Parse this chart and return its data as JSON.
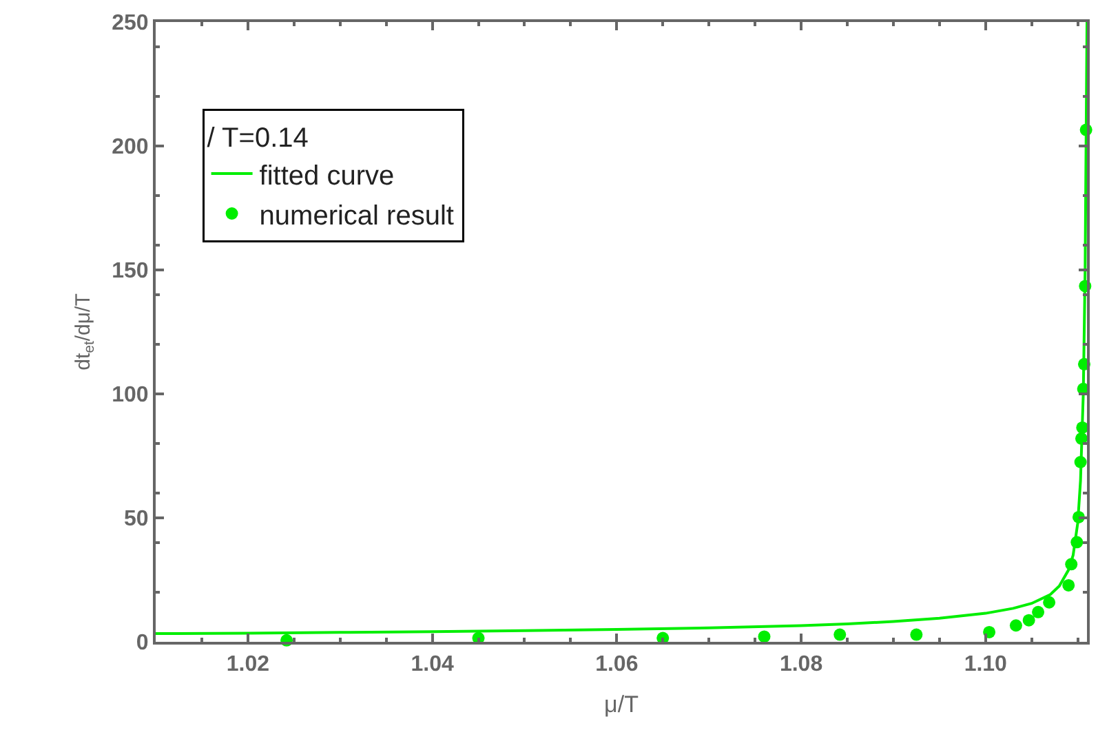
{
  "chart_data": {
    "type": "scatter",
    "xlabel": "μ/T",
    "ylabel": "dt$_{et}$/dμ/T",
    "legend_title": "/ T=0.14",
    "series": [
      {
        "name": "fitted curve",
        "type": "line",
        "color": "#00ee00",
        "marker": "none",
        "line_style": "solid",
        "x": [
          1.01,
          1.02,
          1.03,
          1.04,
          1.05,
          1.06,
          1.07,
          1.08,
          1.085,
          1.09,
          1.095,
          1.1,
          1.103,
          1.105,
          1.107,
          1.108,
          1.109,
          1.1095,
          1.11,
          1.1103,
          1.1106,
          1.1108,
          1.1109,
          1.111
        ],
        "values": [
          3.3,
          3.5,
          3.8,
          4.1,
          4.5,
          5.0,
          5.6,
          6.5,
          7.2,
          8.2,
          9.5,
          11.5,
          13.5,
          15.5,
          19,
          22.5,
          29,
          35,
          48,
          65,
          100,
          150,
          200,
          250
        ]
      },
      {
        "name": "numerical result",
        "color": "#00ee00",
        "marker": "circle",
        "x": [
          1.0242,
          1.045,
          1.065,
          1.076,
          1.0842,
          1.0925,
          1.1004,
          1.1033,
          1.1047,
          1.1057,
          1.1069,
          1.109,
          1.1093,
          1.1099,
          1.1101,
          1.1103,
          1.1104,
          1.1105,
          1.1106,
          1.1107,
          1.1108,
          1.1109
        ],
        "values": [
          0.6,
          1.5,
          1.5,
          2.1,
          2.9,
          2.9,
          3.9,
          6.6,
          8.7,
          12,
          15.9,
          22.8,
          31.3,
          40.2,
          50.3,
          72.5,
          82,
          86.4,
          102,
          112,
          143.5,
          206.5
        ]
      }
    ],
    "xlim": [
      1.01,
      1.111
    ],
    "xticks": [
      1.02,
      1.04,
      1.06,
      1.08,
      {
        "value": 1.1,
        "label": "1.10"
      }
    ],
    "ylim": [
      0,
      250
    ],
    "yticks": [
      0,
      50,
      100,
      150,
      200,
      250
    ],
    "legend": "top left"
  }
}
